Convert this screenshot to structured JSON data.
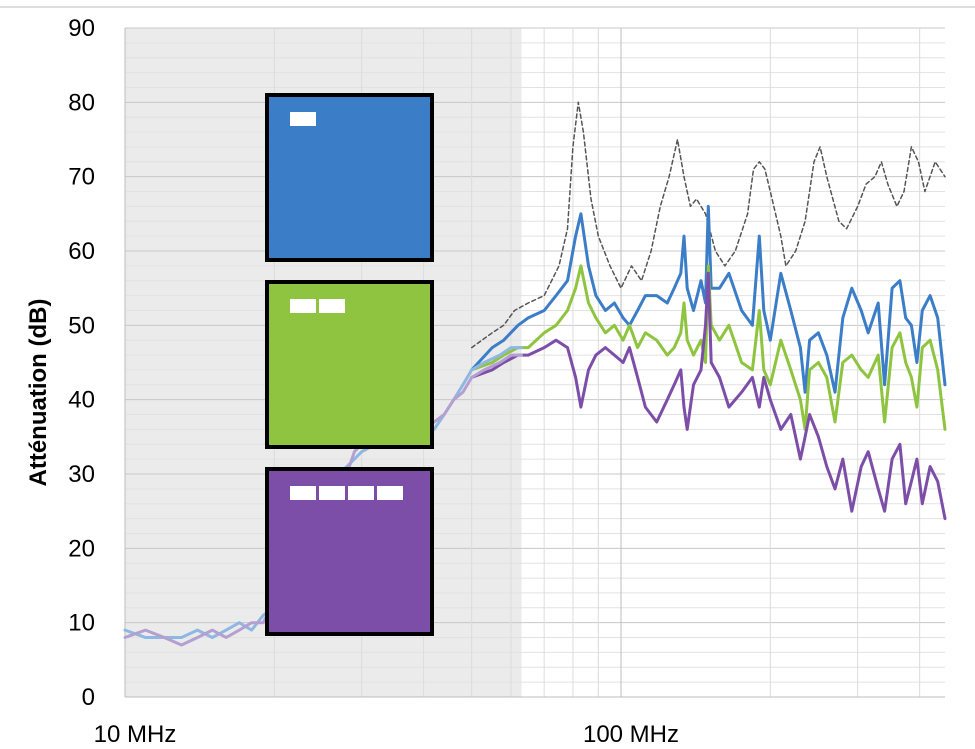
{
  "chart_data": {
    "type": "line",
    "title": "",
    "xlabel": "",
    "ylabel": "Atténuation (dB)",
    "x_scale": "log",
    "x_unit": "MHz",
    "xlim": [
      10,
      450
    ],
    "ylim": [
      0,
      90
    ],
    "y_ticks": [
      0,
      10,
      20,
      30,
      40,
      50,
      60,
      70,
      80,
      90
    ],
    "x_tick_labels": [
      {
        "x": 10,
        "label": "10 MHz"
      },
      {
        "x": 100,
        "label": "100 MHz"
      }
    ],
    "grid": true,
    "shaded_region_x": [
      10,
      63
    ],
    "colors": {
      "background": "#ffffff",
      "shade": "#ebebeb",
      "grid": "#cfcfcf",
      "blue": "#3c7dc8",
      "green": "#8ec43f",
      "purple": "#7d4ea8",
      "dashed": "#555555",
      "light_blue": "#8fb7e3",
      "light_purple": "#b3a0d0"
    },
    "series": [
      {
        "color_key": "dashed",
        "style": "dashed",
        "points": [
          [
            50,
            47
          ],
          [
            55,
            49
          ],
          [
            58,
            50
          ],
          [
            61,
            52
          ],
          [
            65,
            53
          ],
          [
            70,
            54
          ],
          [
            75,
            58
          ],
          [
            78,
            63
          ],
          [
            80,
            74
          ],
          [
            82,
            80
          ],
          [
            84,
            76
          ],
          [
            87,
            67
          ],
          [
            90,
            62
          ],
          [
            95,
            58
          ],
          [
            100,
            55
          ],
          [
            105,
            58
          ],
          [
            110,
            56
          ],
          [
            115,
            60
          ],
          [
            120,
            66
          ],
          [
            125,
            70
          ],
          [
            130,
            75
          ],
          [
            134,
            70
          ],
          [
            138,
            66
          ],
          [
            142,
            67
          ],
          [
            148,
            65
          ],
          [
            155,
            60
          ],
          [
            162,
            58
          ],
          [
            170,
            60
          ],
          [
            180,
            65
          ],
          [
            185,
            71
          ],
          [
            190,
            72
          ],
          [
            195,
            71
          ],
          [
            200,
            68
          ],
          [
            210,
            62
          ],
          [
            215,
            58
          ],
          [
            225,
            60
          ],
          [
            235,
            64
          ],
          [
            245,
            72
          ],
          [
            252,
            74
          ],
          [
            260,
            70
          ],
          [
            275,
            64
          ],
          [
            285,
            63
          ],
          [
            300,
            66
          ],
          [
            312,
            69
          ],
          [
            325,
            70
          ],
          [
            335,
            72
          ],
          [
            345,
            69
          ],
          [
            360,
            66
          ],
          [
            372,
            68
          ],
          [
            385,
            74
          ],
          [
            398,
            72
          ],
          [
            410,
            68
          ],
          [
            430,
            72
          ],
          [
            450,
            70
          ]
        ]
      },
      {
        "color_key": "blue",
        "style": "solid",
        "points": [
          [
            50,
            44
          ],
          [
            55,
            47
          ],
          [
            58,
            48
          ],
          [
            62,
            50
          ],
          [
            65,
            51
          ],
          [
            70,
            52
          ],
          [
            74,
            54
          ],
          [
            78,
            56
          ],
          [
            81,
            62
          ],
          [
            83,
            65
          ],
          [
            86,
            58
          ],
          [
            89,
            54
          ],
          [
            93,
            52
          ],
          [
            97,
            53
          ],
          [
            101,
            51
          ],
          [
            104,
            50
          ],
          [
            108,
            52
          ],
          [
            112,
            54
          ],
          [
            118,
            54
          ],
          [
            124,
            53
          ],
          [
            128,
            55
          ],
          [
            132,
            57
          ],
          [
            134,
            62
          ],
          [
            136,
            55
          ],
          [
            140,
            52
          ],
          [
            145,
            56
          ],
          [
            148,
            53
          ],
          [
            150,
            66
          ],
          [
            152,
            55
          ],
          [
            158,
            55
          ],
          [
            165,
            57
          ],
          [
            175,
            52
          ],
          [
            184,
            50
          ],
          [
            190,
            62
          ],
          [
            194,
            52
          ],
          [
            200,
            48
          ],
          [
            210,
            57
          ],
          [
            220,
            52
          ],
          [
            230,
            47
          ],
          [
            235,
            41
          ],
          [
            240,
            48
          ],
          [
            250,
            49
          ],
          [
            260,
            46
          ],
          [
            270,
            41
          ],
          [
            280,
            51
          ],
          [
            292,
            55
          ],
          [
            305,
            52
          ],
          [
            315,
            49
          ],
          [
            330,
            53
          ],
          [
            340,
            42
          ],
          [
            352,
            55
          ],
          [
            365,
            56
          ],
          [
            375,
            51
          ],
          [
            385,
            50
          ],
          [
            395,
            45
          ],
          [
            405,
            52
          ],
          [
            420,
            54
          ],
          [
            435,
            51
          ],
          [
            450,
            42
          ]
        ]
      },
      {
        "color_key": "green",
        "style": "solid",
        "points": [
          [
            50,
            44
          ],
          [
            55,
            45
          ],
          [
            58,
            46
          ],
          [
            62,
            47
          ],
          [
            65,
            47
          ],
          [
            70,
            49
          ],
          [
            74,
            50
          ],
          [
            78,
            52
          ],
          [
            81,
            55
          ],
          [
            83,
            58
          ],
          [
            86,
            53
          ],
          [
            89,
            51
          ],
          [
            93,
            49
          ],
          [
            97,
            50
          ],
          [
            101,
            48
          ],
          [
            104,
            50
          ],
          [
            108,
            47
          ],
          [
            112,
            49
          ],
          [
            118,
            48
          ],
          [
            124,
            46
          ],
          [
            128,
            47
          ],
          [
            132,
            49
          ],
          [
            134,
            53
          ],
          [
            136,
            48
          ],
          [
            140,
            46
          ],
          [
            145,
            48
          ],
          [
            148,
            45
          ],
          [
            150,
            58
          ],
          [
            152,
            50
          ],
          [
            158,
            48
          ],
          [
            165,
            50
          ],
          [
            175,
            45
          ],
          [
            184,
            44
          ],
          [
            190,
            52
          ],
          [
            194,
            44
          ],
          [
            200,
            42
          ],
          [
            210,
            48
          ],
          [
            220,
            44
          ],
          [
            230,
            40
          ],
          [
            235,
            36
          ],
          [
            240,
            44
          ],
          [
            250,
            45
          ],
          [
            260,
            43
          ],
          [
            270,
            37
          ],
          [
            280,
            45
          ],
          [
            292,
            46
          ],
          [
            305,
            44
          ],
          [
            315,
            43
          ],
          [
            330,
            46
          ],
          [
            340,
            37
          ],
          [
            352,
            47
          ],
          [
            365,
            49
          ],
          [
            375,
            45
          ],
          [
            385,
            43
          ],
          [
            395,
            39
          ],
          [
            405,
            47
          ],
          [
            420,
            48
          ],
          [
            435,
            44
          ],
          [
            450,
            36
          ]
        ]
      },
      {
        "color_key": "purple",
        "style": "solid",
        "points": [
          [
            50,
            43
          ],
          [
            55,
            44
          ],
          [
            58,
            45
          ],
          [
            62,
            46
          ],
          [
            65,
            46
          ],
          [
            70,
            47
          ],
          [
            74,
            48
          ],
          [
            78,
            47
          ],
          [
            81,
            43
          ],
          [
            83,
            39
          ],
          [
            86,
            44
          ],
          [
            89,
            46
          ],
          [
            93,
            47
          ],
          [
            97,
            46
          ],
          [
            101,
            45
          ],
          [
            104,
            47
          ],
          [
            108,
            43
          ],
          [
            112,
            39
          ],
          [
            118,
            37
          ],
          [
            124,
            40
          ],
          [
            128,
            42
          ],
          [
            132,
            44
          ],
          [
            134,
            39
          ],
          [
            136,
            36
          ],
          [
            140,
            42
          ],
          [
            145,
            44
          ],
          [
            148,
            50
          ],
          [
            150,
            57
          ],
          [
            152,
            45
          ],
          [
            158,
            43
          ],
          [
            165,
            39
          ],
          [
            175,
            41
          ],
          [
            184,
            43
          ],
          [
            190,
            39
          ],
          [
            194,
            43
          ],
          [
            200,
            40
          ],
          [
            210,
            36
          ],
          [
            220,
            38
          ],
          [
            230,
            32
          ],
          [
            235,
            35
          ],
          [
            240,
            38
          ],
          [
            250,
            35
          ],
          [
            260,
            31
          ],
          [
            270,
            28
          ],
          [
            280,
            32
          ],
          [
            292,
            25
          ],
          [
            305,
            31
          ],
          [
            315,
            33
          ],
          [
            330,
            28
          ],
          [
            340,
            25
          ],
          [
            352,
            32
          ],
          [
            365,
            34
          ],
          [
            375,
            26
          ],
          [
            385,
            29
          ],
          [
            395,
            32
          ],
          [
            405,
            26
          ],
          [
            420,
            31
          ],
          [
            435,
            29
          ],
          [
            450,
            24
          ]
        ]
      },
      {
        "color_key": "light_blue",
        "style": "solid",
        "points": [
          [
            10,
            9
          ],
          [
            11,
            8
          ],
          [
            12,
            8
          ],
          [
            13,
            8
          ],
          [
            14,
            9
          ],
          [
            15,
            8
          ],
          [
            16,
            9
          ],
          [
            17,
            10
          ],
          [
            18,
            9
          ],
          [
            19,
            11
          ],
          [
            20,
            12
          ],
          [
            21,
            15
          ],
          [
            22,
            18
          ],
          [
            23,
            20
          ],
          [
            24,
            22
          ],
          [
            25,
            26
          ],
          [
            26,
            28
          ],
          [
            27,
            30
          ],
          [
            28,
            31
          ],
          [
            29,
            32
          ],
          [
            30,
            33
          ],
          [
            32,
            34
          ],
          [
            34,
            35
          ],
          [
            36,
            35
          ],
          [
            38,
            34
          ],
          [
            40,
            35
          ],
          [
            42,
            36
          ],
          [
            44,
            38
          ],
          [
            46,
            40
          ],
          [
            48,
            42
          ],
          [
            50,
            44
          ],
          [
            53,
            45
          ],
          [
            57,
            46
          ],
          [
            60,
            47
          ],
          [
            63,
            47
          ]
        ]
      },
      {
        "color_key": "light_purple",
        "style": "solid",
        "points": [
          [
            10,
            8
          ],
          [
            11,
            9
          ],
          [
            12,
            8
          ],
          [
            13,
            7
          ],
          [
            14,
            8
          ],
          [
            15,
            9
          ],
          [
            16,
            8
          ],
          [
            17,
            9
          ],
          [
            18,
            10
          ],
          [
            19,
            10
          ],
          [
            20,
            13
          ],
          [
            21,
            14
          ],
          [
            22,
            17
          ],
          [
            23,
            19
          ],
          [
            24,
            23
          ],
          [
            25,
            25
          ],
          [
            26,
            27
          ],
          [
            27,
            29
          ],
          [
            28,
            30
          ],
          [
            29,
            33
          ],
          [
            30,
            34
          ],
          [
            32,
            35
          ],
          [
            34,
            34
          ],
          [
            36,
            36
          ],
          [
            38,
            35
          ],
          [
            40,
            36
          ],
          [
            42,
            37
          ],
          [
            44,
            38
          ],
          [
            46,
            40
          ],
          [
            48,
            41
          ],
          [
            50,
            43
          ],
          [
            53,
            44
          ],
          [
            57,
            45
          ],
          [
            60,
            46
          ],
          [
            63,
            46
          ]
        ]
      }
    ],
    "legend": [
      {
        "color_key": "blue"
      },
      {
        "color_key": "green"
      },
      {
        "color_key": "purple"
      }
    ]
  }
}
